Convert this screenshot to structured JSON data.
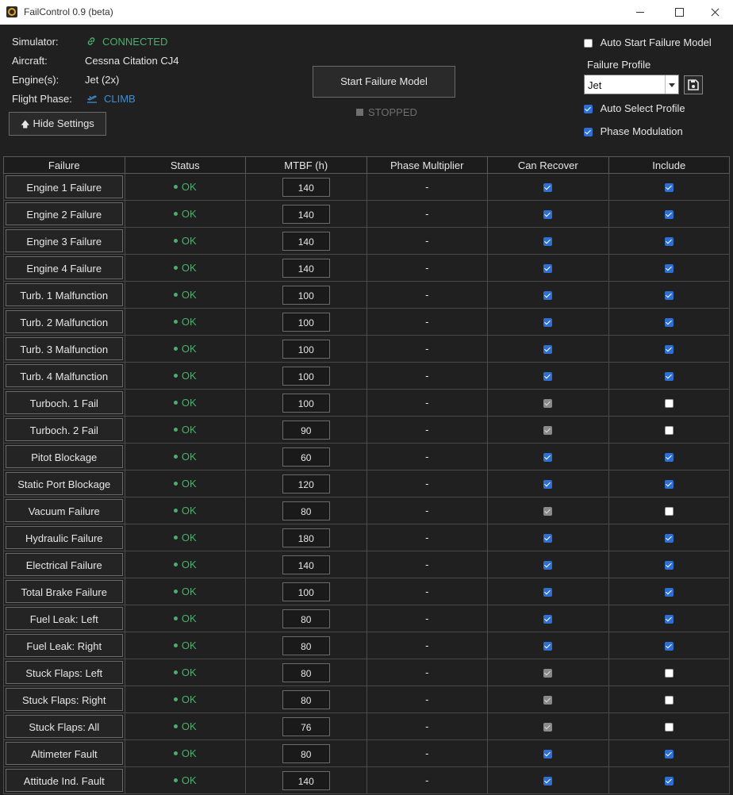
{
  "window": {
    "title": "FailControl 0.9 (beta)"
  },
  "info": {
    "simulator_label": "Simulator:",
    "simulator_value": "CONNECTED",
    "aircraft_label": "Aircraft:",
    "aircraft_value": "Cessna Citation CJ4",
    "engines_label": "Engine(s):",
    "engines_value": "Jet (2x)",
    "phase_label": "Flight Phase:",
    "phase_value": "CLIMB",
    "hide_settings": "Hide Settings"
  },
  "control": {
    "start_label": "Start Failure Model",
    "state_label": "STOPPED"
  },
  "settings": {
    "auto_start_label": "Auto Start Failure Model",
    "auto_start": false,
    "profile_label": "Failure Profile",
    "profile_value": "Jet",
    "auto_select_label": "Auto Select Profile",
    "auto_select": true,
    "phase_mod_label": "Phase Modulation",
    "phase_mod": true
  },
  "table": {
    "headers": [
      "Failure",
      "Status",
      "MTBF (h)",
      "Phase Multiplier",
      "Can Recover",
      "Include"
    ],
    "rows": [
      {
        "name": "Engine 1 Failure",
        "status": "OK",
        "mtbf": "140",
        "mult": "-",
        "recover": "on",
        "include": "on"
      },
      {
        "name": "Engine 2 Failure",
        "status": "OK",
        "mtbf": "140",
        "mult": "-",
        "recover": "on",
        "include": "on"
      },
      {
        "name": "Engine 3 Failure",
        "status": "OK",
        "mtbf": "140",
        "mult": "-",
        "recover": "on",
        "include": "on"
      },
      {
        "name": "Engine 4 Failure",
        "status": "OK",
        "mtbf": "140",
        "mult": "-",
        "recover": "on",
        "include": "on"
      },
      {
        "name": "Turb. 1 Malfunction",
        "status": "OK",
        "mtbf": "100",
        "mult": "-",
        "recover": "on",
        "include": "on"
      },
      {
        "name": "Turb. 2 Malfunction",
        "status": "OK",
        "mtbf": "100",
        "mult": "-",
        "recover": "on",
        "include": "on"
      },
      {
        "name": "Turb. 3 Malfunction",
        "status": "OK",
        "mtbf": "100",
        "mult": "-",
        "recover": "on",
        "include": "on"
      },
      {
        "name": "Turb. 4 Malfunction",
        "status": "OK",
        "mtbf": "100",
        "mult": "-",
        "recover": "on",
        "include": "on"
      },
      {
        "name": "Turboch. 1 Fail",
        "status": "OK",
        "mtbf": "100",
        "mult": "-",
        "recover": "dis",
        "include": "off"
      },
      {
        "name": "Turboch. 2 Fail",
        "status": "OK",
        "mtbf": "90",
        "mult": "-",
        "recover": "dis",
        "include": "off"
      },
      {
        "name": "Pitot Blockage",
        "status": "OK",
        "mtbf": "60",
        "mult": "-",
        "recover": "on",
        "include": "on"
      },
      {
        "name": "Static Port Blockage",
        "status": "OK",
        "mtbf": "120",
        "mult": "-",
        "recover": "on",
        "include": "on"
      },
      {
        "name": "Vacuum Failure",
        "status": "OK",
        "mtbf": "80",
        "mult": "-",
        "recover": "dis",
        "include": "off"
      },
      {
        "name": "Hydraulic Failure",
        "status": "OK",
        "mtbf": "180",
        "mult": "-",
        "recover": "on",
        "include": "on"
      },
      {
        "name": "Electrical Failure",
        "status": "OK",
        "mtbf": "140",
        "mult": "-",
        "recover": "on",
        "include": "on"
      },
      {
        "name": "Total Brake Failure",
        "status": "OK",
        "mtbf": "100",
        "mult": "-",
        "recover": "on",
        "include": "on"
      },
      {
        "name": "Fuel Leak: Left",
        "status": "OK",
        "mtbf": "80",
        "mult": "-",
        "recover": "on",
        "include": "on"
      },
      {
        "name": "Fuel Leak: Right",
        "status": "OK",
        "mtbf": "80",
        "mult": "-",
        "recover": "on",
        "include": "on"
      },
      {
        "name": "Stuck Flaps: Left",
        "status": "OK",
        "mtbf": "80",
        "mult": "-",
        "recover": "dis",
        "include": "off"
      },
      {
        "name": "Stuck Flaps: Right",
        "status": "OK",
        "mtbf": "80",
        "mult": "-",
        "recover": "dis",
        "include": "off"
      },
      {
        "name": "Stuck Flaps: All",
        "status": "OK",
        "mtbf": "76",
        "mult": "-",
        "recover": "dis",
        "include": "off"
      },
      {
        "name": "Altimeter Fault",
        "status": "OK",
        "mtbf": "80",
        "mult": "-",
        "recover": "on",
        "include": "on"
      },
      {
        "name": "Attitude Ind. Fault",
        "status": "OK",
        "mtbf": "140",
        "mult": "-",
        "recover": "on",
        "include": "on"
      }
    ]
  }
}
